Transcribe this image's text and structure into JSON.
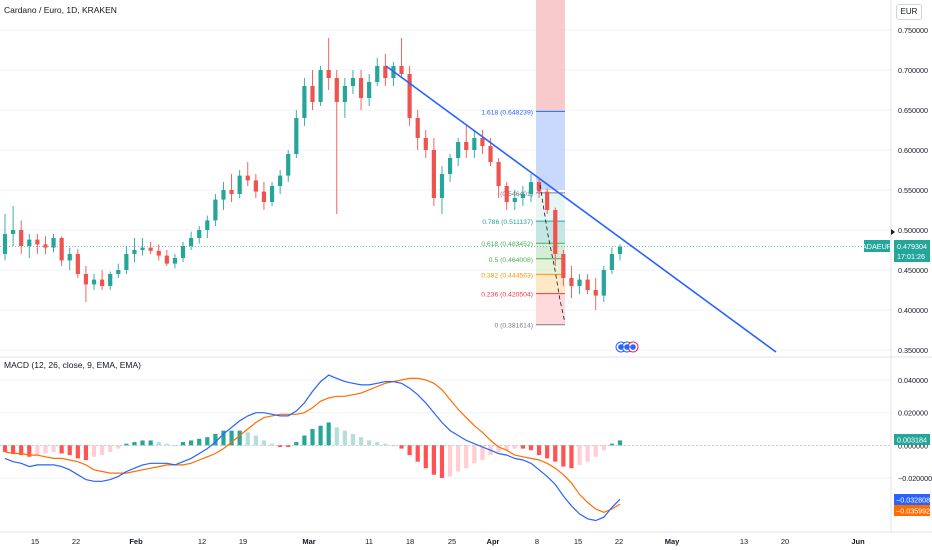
{
  "header": {
    "title": "Cardano / Euro, 1D, KRAKEN",
    "currency": "EUR"
  },
  "price_panel": {
    "symbol_badge": "ADAEUR",
    "last_price_label": "0.479304",
    "countdown_label": "17:01:26",
    "y_ticks": [
      "0.750000",
      "0.700000",
      "0.650000",
      "0.600000",
      "0.550000",
      "0.500000",
      "0.450000",
      "0.400000",
      "0.350000"
    ]
  },
  "macd_panel": {
    "title": "MACD (12, 26, close, 9, EMA, EMA)",
    "y_ticks": [
      "0.040000",
      "0.020000",
      "0.000000",
      "−0.020000"
    ],
    "hist_badge": "0.003184",
    "macd_badge": "−0.032808",
    "signal_badge": "−0.035992"
  },
  "x_axis": {
    "ticks": [
      "15",
      "22",
      "Feb",
      "12",
      "19",
      "Mar",
      "11",
      "18",
      "25",
      "Apr",
      "8",
      "15",
      "22",
      "May",
      "13",
      "20",
      "Jun"
    ]
  },
  "fibonacci": {
    "levels": [
      {
        "label": "1.618 (0.648239)",
        "value": 0.648239
      },
      {
        "label": "(0.546401)",
        "value": 0.546401
      },
      {
        "label": "0.786 (0.511137)",
        "value": 0.511137
      },
      {
        "label": "0.618 (0.483452)",
        "value": 0.483452
      },
      {
        "label": "0.5 (0.464008)",
        "value": 0.464008
      },
      {
        "label": "0.382 (0.444563)",
        "value": 0.444563
      },
      {
        "label": "0.236 (0.420504)",
        "value": 0.420504
      },
      {
        "label": "0 (0.381614)",
        "value": 0.381614
      }
    ]
  },
  "colors": {
    "up": "#26a69a",
    "down": "#ef5350",
    "trendline": "#2962ff",
    "macd": "#2962ff",
    "signal": "#ff6d00"
  },
  "chart_data": {
    "type": "candlestick",
    "title": "Cardano / Euro, 1D, KRAKEN",
    "ylim": [
      0.345,
      0.765
    ],
    "macd_ylim": [
      -0.057,
      0.048
    ],
    "candles": [
      [
        0.47,
        0.52,
        0.462,
        0.495
      ],
      [
        0.495,
        0.53,
        0.48,
        0.5
      ],
      [
        0.5,
        0.512,
        0.47,
        0.48
      ],
      [
        0.48,
        0.495,
        0.465,
        0.488
      ],
      [
        0.488,
        0.495,
        0.47,
        0.482
      ],
      [
        0.482,
        0.492,
        0.47,
        0.478
      ],
      [
        0.478,
        0.495,
        0.472,
        0.49
      ],
      [
        0.49,
        0.492,
        0.455,
        0.462
      ],
      [
        0.462,
        0.478,
        0.45,
        0.47
      ],
      [
        0.47,
        0.476,
        0.44,
        0.445
      ],
      [
        0.445,
        0.455,
        0.41,
        0.432
      ],
      [
        0.432,
        0.445,
        0.425,
        0.438
      ],
      [
        0.438,
        0.45,
        0.425,
        0.43
      ],
      [
        0.43,
        0.448,
        0.425,
        0.445
      ],
      [
        0.445,
        0.458,
        0.44,
        0.45
      ],
      [
        0.45,
        0.48,
        0.445,
        0.47
      ],
      [
        0.47,
        0.49,
        0.46,
        0.475
      ],
      [
        0.475,
        0.49,
        0.468,
        0.478
      ],
      [
        0.478,
        0.485,
        0.47,
        0.474
      ],
      [
        0.474,
        0.482,
        0.462,
        0.468
      ],
      [
        0.468,
        0.475,
        0.455,
        0.458
      ],
      [
        0.458,
        0.47,
        0.452,
        0.465
      ],
      [
        0.465,
        0.485,
        0.46,
        0.48
      ],
      [
        0.48,
        0.498,
        0.475,
        0.49
      ],
      [
        0.49,
        0.505,
        0.483,
        0.5
      ],
      [
        0.5,
        0.518,
        0.49,
        0.512
      ],
      [
        0.512,
        0.545,
        0.505,
        0.538
      ],
      [
        0.538,
        0.56,
        0.525,
        0.55
      ],
      [
        0.55,
        0.57,
        0.535,
        0.545
      ],
      [
        0.545,
        0.575,
        0.54,
        0.568
      ],
      [
        0.568,
        0.585,
        0.555,
        0.562
      ],
      [
        0.562,
        0.57,
        0.54,
        0.548
      ],
      [
        0.548,
        0.56,
        0.525,
        0.535
      ],
      [
        0.535,
        0.56,
        0.53,
        0.555
      ],
      [
        0.555,
        0.575,
        0.545,
        0.568
      ],
      [
        0.568,
        0.6,
        0.56,
        0.595
      ],
      [
        0.595,
        0.65,
        0.59,
        0.64
      ],
      [
        0.64,
        0.69,
        0.63,
        0.68
      ],
      [
        0.68,
        0.7,
        0.65,
        0.66
      ],
      [
        0.66,
        0.705,
        0.655,
        0.7
      ],
      [
        0.7,
        0.74,
        0.675,
        0.69
      ],
      [
        0.69,
        0.7,
        0.52,
        0.66
      ],
      [
        0.66,
        0.69,
        0.64,
        0.68
      ],
      [
        0.68,
        0.7,
        0.67,
        0.69
      ],
      [
        0.69,
        0.7,
        0.65,
        0.665
      ],
      [
        0.665,
        0.695,
        0.655,
        0.685
      ],
      [
        0.685,
        0.715,
        0.68,
        0.705
      ],
      [
        0.705,
        0.72,
        0.68,
        0.69
      ],
      [
        0.69,
        0.71,
        0.68,
        0.705
      ],
      [
        0.705,
        0.74,
        0.69,
        0.695
      ],
      [
        0.695,
        0.705,
        0.63,
        0.64
      ],
      [
        0.64,
        0.65,
        0.6,
        0.615
      ],
      [
        0.615,
        0.625,
        0.59,
        0.6
      ],
      [
        0.6,
        0.615,
        0.53,
        0.54
      ],
      [
        0.54,
        0.58,
        0.52,
        0.57
      ],
      [
        0.57,
        0.595,
        0.56,
        0.59
      ],
      [
        0.59,
        0.615,
        0.58,
        0.61
      ],
      [
        0.61,
        0.63,
        0.59,
        0.6
      ],
      [
        0.6,
        0.625,
        0.59,
        0.615
      ],
      [
        0.615,
        0.625,
        0.595,
        0.605
      ],
      [
        0.605,
        0.615,
        0.58,
        0.585
      ],
      [
        0.585,
        0.59,
        0.54,
        0.555
      ],
      [
        0.555,
        0.56,
        0.525,
        0.535
      ],
      [
        0.535,
        0.55,
        0.525,
        0.54
      ],
      [
        0.54,
        0.555,
        0.53,
        0.545
      ],
      [
        0.545,
        0.57,
        0.535,
        0.56
      ],
      [
        0.56,
        0.565,
        0.54,
        0.548
      ],
      [
        0.548,
        0.552,
        0.52,
        0.525
      ],
      [
        0.525,
        0.528,
        0.455,
        0.47
      ],
      [
        0.47,
        0.475,
        0.43,
        0.44
      ],
      [
        0.44,
        0.455,
        0.415,
        0.43
      ],
      [
        0.43,
        0.445,
        0.42,
        0.438
      ],
      [
        0.438,
        0.445,
        0.42,
        0.425
      ],
      [
        0.425,
        0.44,
        0.4,
        0.418
      ],
      [
        0.418,
        0.455,
        0.41,
        0.45
      ],
      [
        0.45,
        0.478,
        0.445,
        0.47
      ],
      [
        0.47,
        0.482,
        0.462,
        0.479
      ]
    ],
    "macd": {
      "histogram": [
        -0.004,
        -0.005,
        -0.006,
        -0.007,
        -0.006,
        -0.005,
        -0.004,
        -0.005,
        -0.006,
        -0.008,
        -0.009,
        -0.007,
        -0.006,
        -0.004,
        -0.002,
        0.001,
        0.002,
        0.003,
        0.003,
        0.002,
        0.001,
        0.0,
        0.002,
        0.003,
        0.004,
        0.005,
        0.007,
        0.009,
        0.009,
        0.009,
        0.008,
        0.006,
        0.003,
        0.001,
        -0.001,
        -0.001,
        0.002,
        0.006,
        0.01,
        0.012,
        0.014,
        0.011,
        0.009,
        0.007,
        0.005,
        0.003,
        0.002,
        0.001,
        0.0,
        -0.002,
        -0.006,
        -0.01,
        -0.014,
        -0.018,
        -0.02,
        -0.019,
        -0.016,
        -0.014,
        -0.011,
        -0.009,
        -0.006,
        -0.004,
        -0.003,
        -0.002,
        -0.002,
        -0.003,
        -0.006,
        -0.008,
        -0.01,
        -0.013,
        -0.014,
        -0.012,
        -0.01,
        -0.007,
        -0.003,
        0.001,
        0.003
      ],
      "macd_line": [
        -0.008,
        -0.01,
        -0.011,
        -0.013,
        -0.012,
        -0.012,
        -0.012,
        -0.013,
        -0.015,
        -0.018,
        -0.021,
        -0.022,
        -0.022,
        -0.021,
        -0.019,
        -0.016,
        -0.014,
        -0.012,
        -0.011,
        -0.011,
        -0.011,
        -0.012,
        -0.01,
        -0.008,
        -0.005,
        -0.002,
        0.002,
        0.007,
        0.011,
        0.015,
        0.018,
        0.02,
        0.02,
        0.019,
        0.018,
        0.018,
        0.021,
        0.026,
        0.033,
        0.039,
        0.043,
        0.041,
        0.039,
        0.038,
        0.037,
        0.037,
        0.038,
        0.039,
        0.039,
        0.038,
        0.035,
        0.031,
        0.026,
        0.02,
        0.014,
        0.009,
        0.006,
        0.003,
        0.001,
        -0.001,
        -0.003,
        -0.005,
        -0.006,
        -0.008,
        -0.009,
        -0.011,
        -0.015,
        -0.019,
        -0.024,
        -0.031,
        -0.037,
        -0.042,
        -0.045,
        -0.046,
        -0.044,
        -0.038,
        -0.033
      ],
      "signal_line": [
        -0.004,
        -0.005,
        -0.005,
        -0.006,
        -0.006,
        -0.007,
        -0.008,
        -0.008,
        -0.009,
        -0.01,
        -0.012,
        -0.015,
        -0.016,
        -0.017,
        -0.017,
        -0.017,
        -0.016,
        -0.015,
        -0.014,
        -0.013,
        -0.012,
        -0.012,
        -0.012,
        -0.011,
        -0.009,
        -0.007,
        -0.005,
        -0.002,
        0.002,
        0.006,
        0.01,
        0.014,
        0.017,
        0.018,
        0.019,
        0.019,
        0.019,
        0.02,
        0.023,
        0.027,
        0.029,
        0.03,
        0.03,
        0.031,
        0.032,
        0.034,
        0.036,
        0.038,
        0.039,
        0.04,
        0.041,
        0.041,
        0.04,
        0.038,
        0.034,
        0.028,
        0.022,
        0.017,
        0.012,
        0.008,
        0.003,
        -0.001,
        -0.003,
        -0.006,
        -0.007,
        -0.008,
        -0.009,
        -0.011,
        -0.014,
        -0.018,
        -0.023,
        -0.03,
        -0.035,
        -0.039,
        -0.041,
        -0.039,
        -0.036
      ]
    }
  }
}
